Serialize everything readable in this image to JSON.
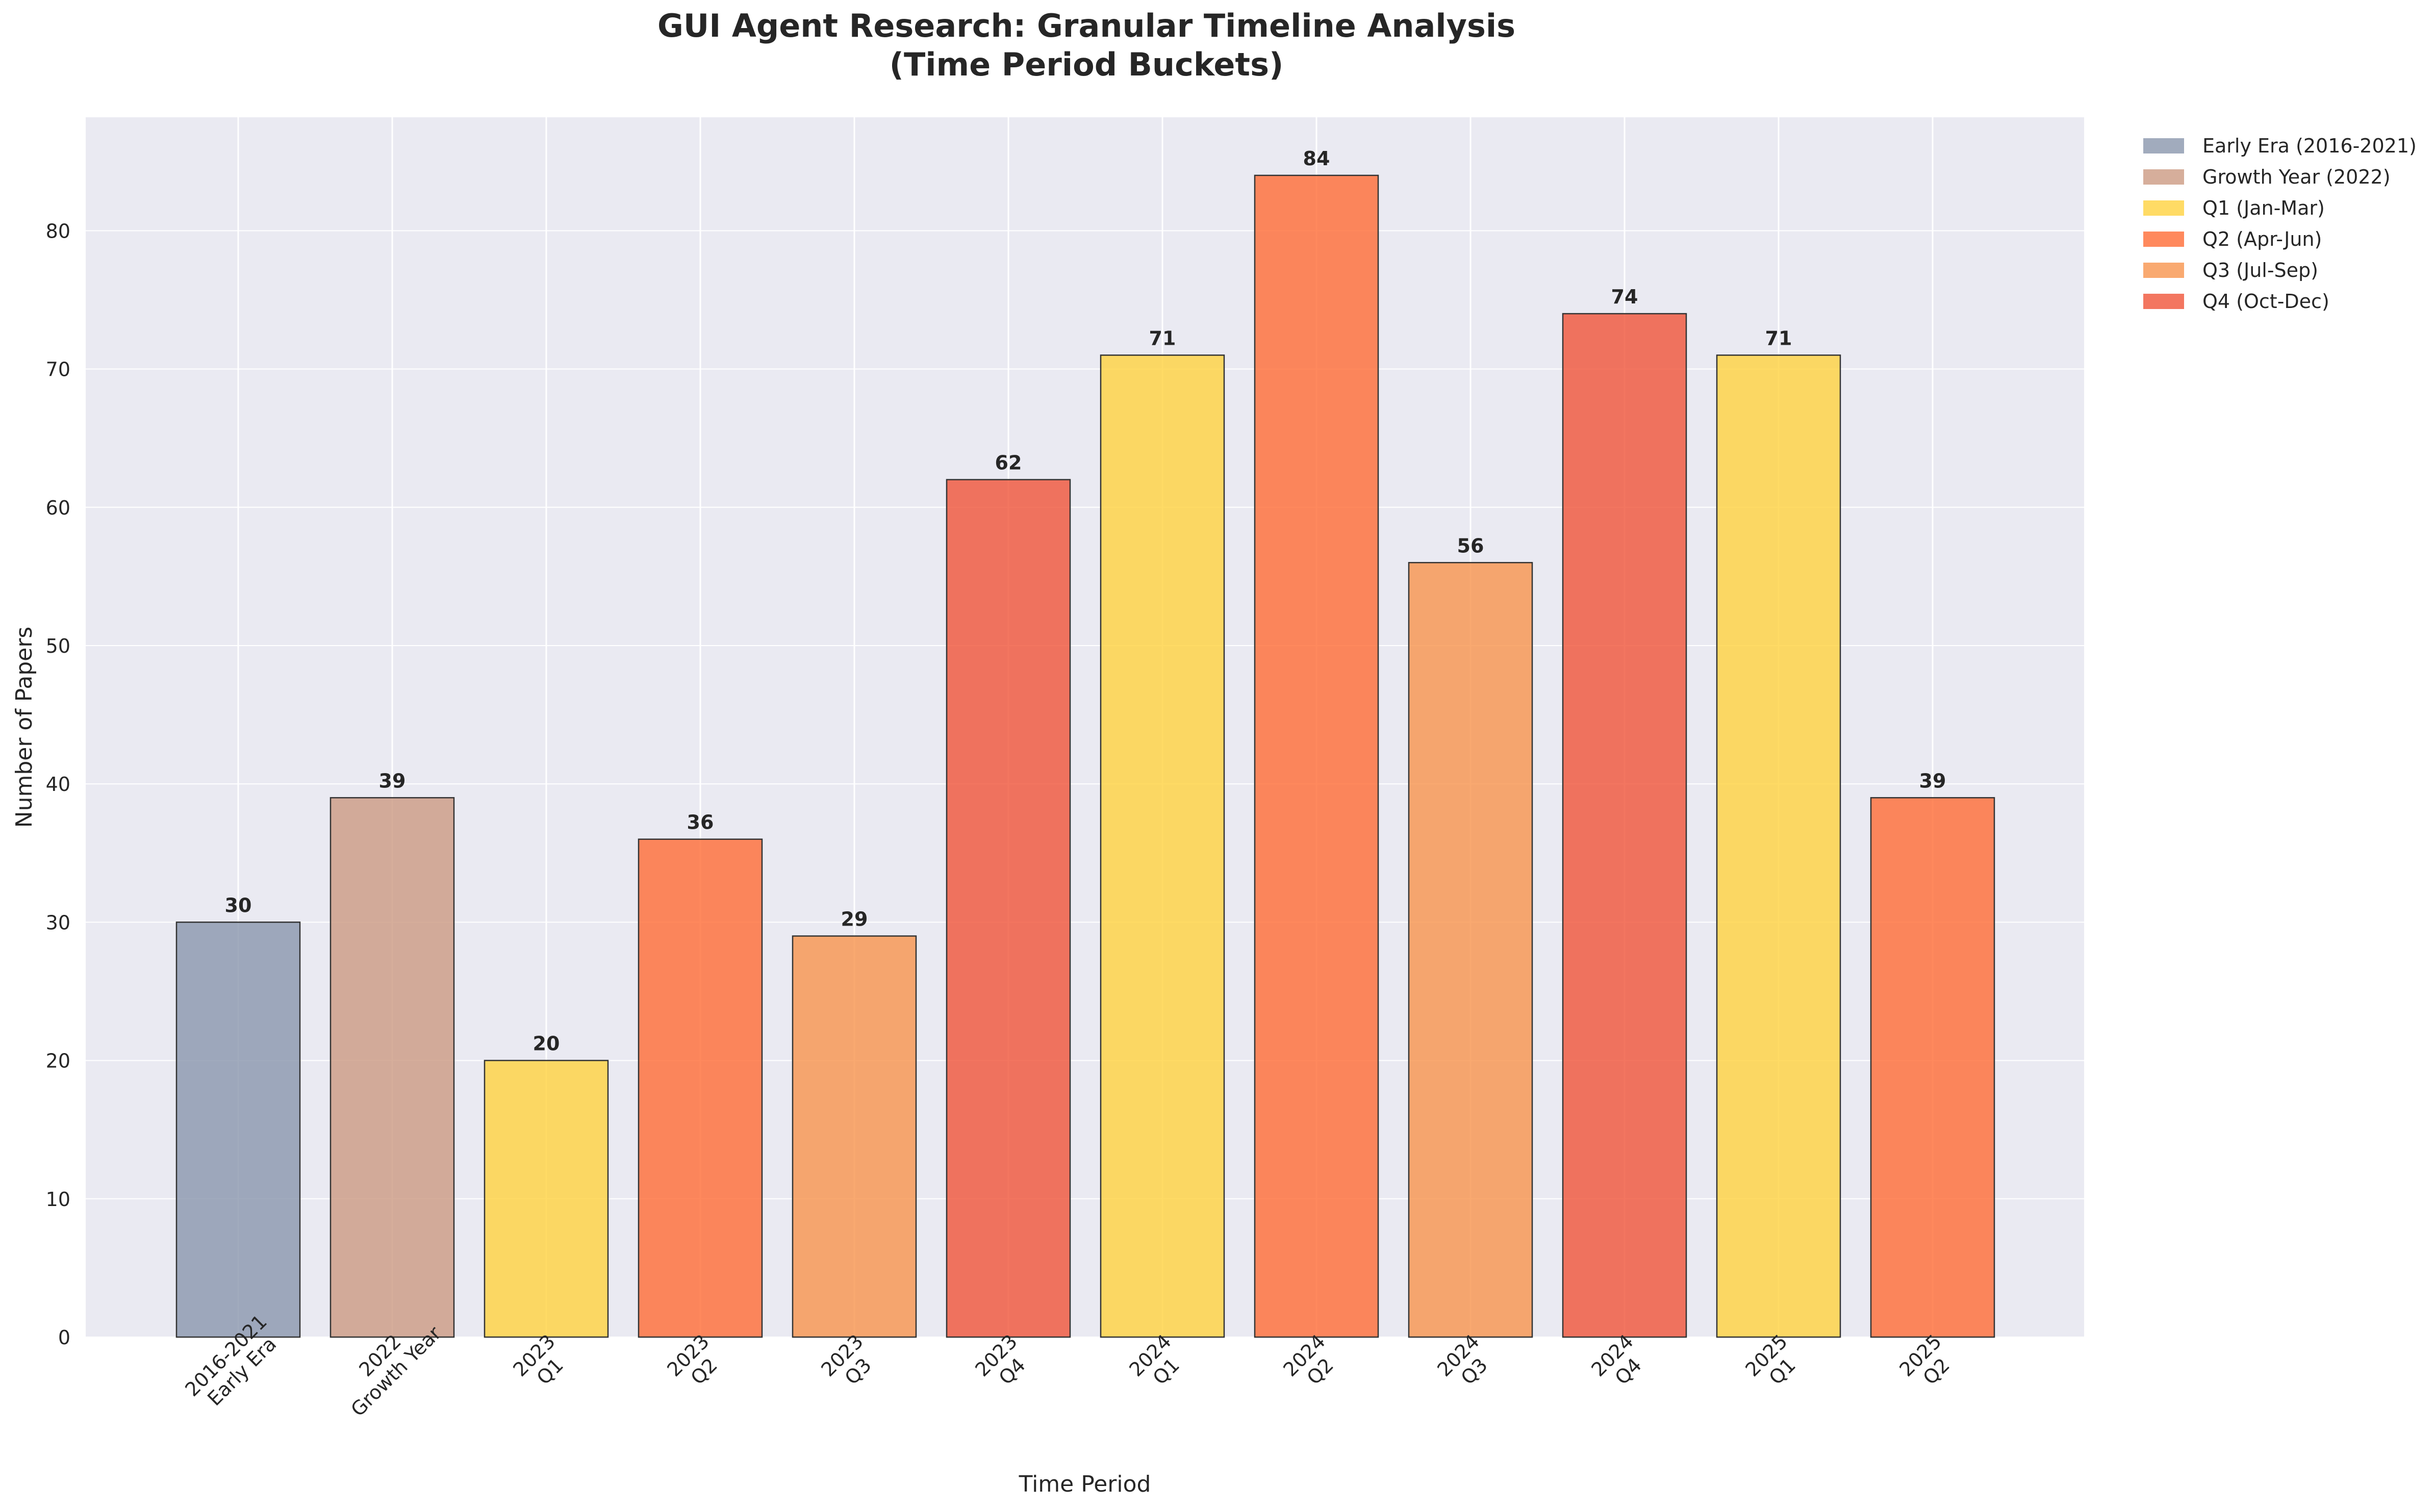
{
  "chart_data": {
    "type": "bar",
    "title": "GUI Agent Research: Granular Timeline Analysis",
    "subtitle": "(Time Period Buckets)",
    "xlabel": "Time Period",
    "ylabel": "Number of Papers",
    "ylim": [
      0,
      88.2
    ],
    "yticks": [
      0,
      10,
      20,
      30,
      40,
      50,
      60,
      70,
      80
    ],
    "grid": true,
    "legend_position": "outside top-right",
    "categories": [
      "2016-2021\nEarly Era",
      "2022\nGrowth Year",
      "2023\nQ1",
      "2023\nQ2",
      "2023\nQ3",
      "2023\nQ4",
      "2024\nQ1",
      "2024\nQ2",
      "2024\nQ3",
      "2024\nQ4",
      "2025\nQ1",
      "2025\nQ2"
    ],
    "values": [
      30,
      39,
      20,
      36,
      29,
      62,
      71,
      84,
      56,
      74,
      71,
      39
    ],
    "bar_groups": [
      "early",
      "growth",
      "q1",
      "q2",
      "q3",
      "q4",
      "q1",
      "q2",
      "q3",
      "q4",
      "q1",
      "q2"
    ],
    "legend": [
      {
        "key": "early",
        "label": "Early Era (2016-2021)",
        "color": "#8a96ac"
      },
      {
        "key": "growth",
        "label": "Growth Year (2022)",
        "color": "#cc9a82"
      },
      {
        "key": "q1",
        "label": "Q1 (Jan-Mar)",
        "color": "#ffd23f"
      },
      {
        "key": "q2",
        "label": "Q2 (Apr-Jun)",
        "color": "#ff6b35"
      },
      {
        "key": "q3",
        "label": "Q3 (Jul-Sep)",
        "color": "#f7934c"
      },
      {
        "key": "q4",
        "label": "Q4 (Oct-Dec)",
        "color": "#f05438"
      }
    ],
    "bar_opacity": 0.8
  },
  "colors": {
    "plot_background": "#eaeaf2",
    "grid": "#ffffff",
    "bar_edge": "#333333",
    "text": "#262626"
  }
}
